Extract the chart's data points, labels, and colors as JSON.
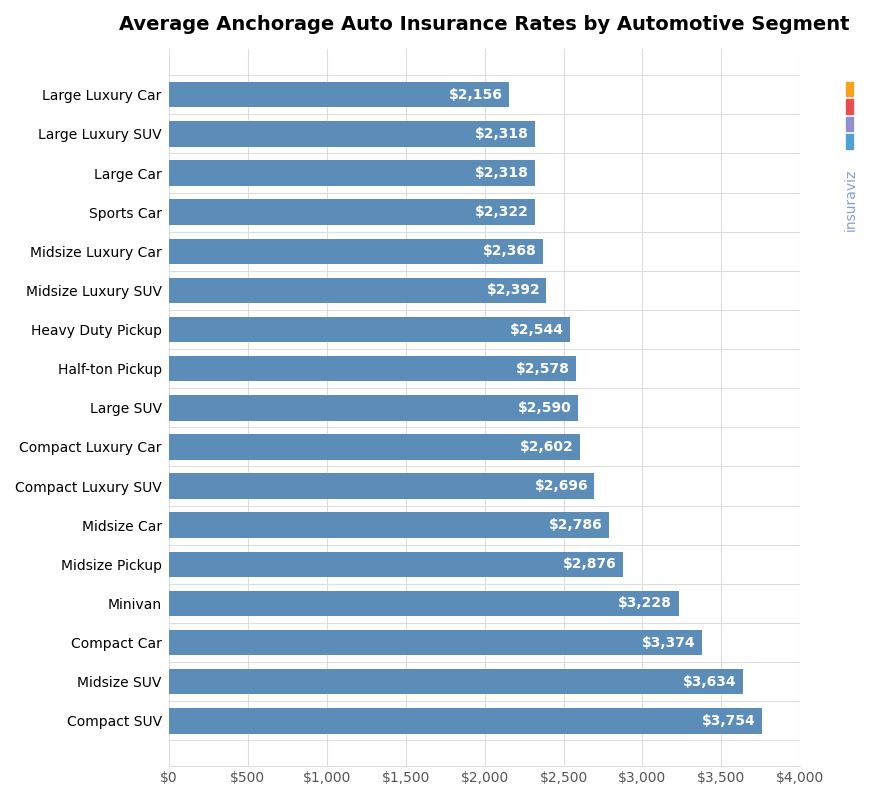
{
  "title": "Average Anchorage Auto Insurance Rates by Automotive Segment",
  "categories": [
    "Compact SUV",
    "Midsize SUV",
    "Compact Car",
    "Minivan",
    "Midsize Pickup",
    "Midsize Car",
    "Compact Luxury SUV",
    "Compact Luxury Car",
    "Large SUV",
    "Half-ton Pickup",
    "Heavy Duty Pickup",
    "Midsize Luxury SUV",
    "Midsize Luxury Car",
    "Sports Car",
    "Large Car",
    "Large Luxury SUV",
    "Large Luxury Car"
  ],
  "values": [
    2156,
    2318,
    2318,
    2322,
    2368,
    2392,
    2544,
    2578,
    2590,
    2602,
    2696,
    2786,
    2876,
    3228,
    3374,
    3634,
    3754
  ],
  "bar_color": "#5b8db8",
  "label_color": "#ffffff",
  "background_color": "#ffffff",
  "title_fontsize": 14,
  "label_fontsize": 10,
  "ytick_fontsize": 10,
  "xtick_fontsize": 10,
  "xlim": [
    0,
    4000
  ],
  "xticks": [
    0,
    500,
    1000,
    1500,
    2000,
    2500,
    3000,
    3500,
    4000
  ],
  "xtick_labels": [
    "$0",
    "$500",
    "$1,000",
    "$1,500",
    "$2,000",
    "$2,500",
    "$3,000",
    "$3,500",
    "$4,000"
  ],
  "grid_color": "#dddddd",
  "watermark_text": "insuraviz",
  "watermark_color": "#7090c0",
  "logo_colors": [
    "#f4a020",
    "#e85050",
    "#9090cc",
    "#50a0d0"
  ]
}
